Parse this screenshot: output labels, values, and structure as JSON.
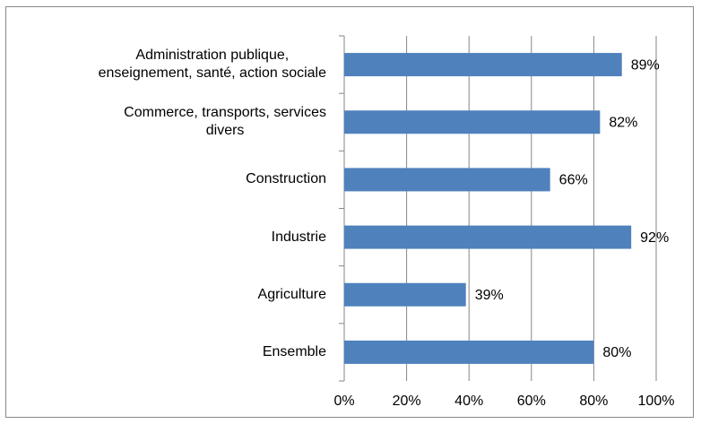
{
  "chart_data": {
    "type": "bar",
    "orientation": "horizontal",
    "categories": [
      "Administration publique,\nenseignement, santé, action sociale",
      "Commerce, transports, services\ndivers",
      "Construction",
      "Industrie",
      "Agriculture",
      "Ensemble"
    ],
    "values": [
      89,
      82,
      66,
      92,
      39,
      80
    ],
    "value_labels": [
      "89%",
      "82%",
      "66%",
      "92%",
      "39%",
      "80%"
    ],
    "color": "#4f81bd",
    "xlim": [
      0,
      100
    ],
    "xticks": [
      {
        "value": 0,
        "label": "0%"
      },
      {
        "value": 20,
        "label": "20%"
      },
      {
        "value": 40,
        "label": "40%"
      },
      {
        "value": 60,
        "label": "60%"
      },
      {
        "value": 80,
        "label": "80%"
      },
      {
        "value": 100,
        "label": "100%"
      }
    ],
    "grid": true
  }
}
